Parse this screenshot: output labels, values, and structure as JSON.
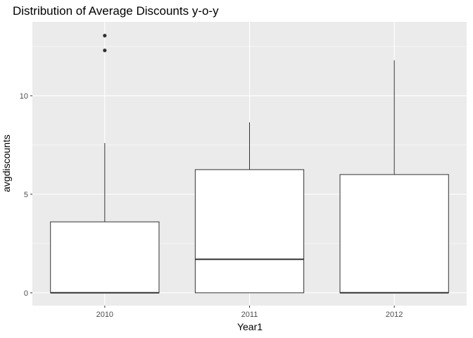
{
  "chart_data": {
    "type": "boxplot",
    "title": "Distribution of Average Discounts y-o-y",
    "xlabel": "Year1",
    "ylabel": "avgdiscounts",
    "categories": [
      "2010",
      "2011",
      "2012"
    ],
    "boxes": [
      {
        "category": "2010",
        "whisker_low": 0,
        "q1": 0,
        "median": 0,
        "q3": 3.6,
        "whisker_high": 7.6,
        "outliers": [
          12.3,
          13.05
        ]
      },
      {
        "category": "2011",
        "whisker_low": 0,
        "q1": 0,
        "median": 1.7,
        "q3": 6.25,
        "whisker_high": 8.65,
        "outliers": []
      },
      {
        "category": "2012",
        "whisker_low": 0,
        "q1": 0,
        "median": 0,
        "q3": 6.0,
        "whisker_high": 11.8,
        "outliers": []
      }
    ],
    "y_ticks": [
      0,
      5,
      10
    ],
    "y_tick_labels": [
      "0",
      "5",
      "10"
    ],
    "ylim": [
      -0.65,
      13.75
    ],
    "grid": true,
    "legend": "none",
    "colors": {
      "panel": "#ebebeb",
      "grid_major": "#ffffff",
      "box_fill": "#ffffff",
      "box_stroke": "#333333",
      "outlier": "#333333",
      "text": "#000000",
      "tick_text": "#4d4d4d",
      "tick_mark": "#333333"
    }
  }
}
